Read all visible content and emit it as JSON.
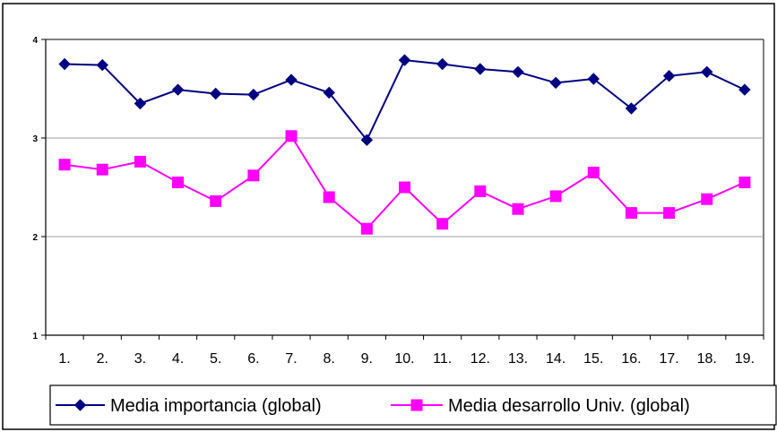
{
  "chart_data": {
    "type": "line",
    "title": "",
    "xlabel": "",
    "ylabel": "",
    "categories": [
      "1.",
      "2.",
      "3.",
      "4.",
      "5.",
      "6.",
      "7.",
      "8.",
      "9.",
      "10.",
      "11.",
      "12.",
      "13.",
      "14.",
      "15.",
      "16.",
      "17.",
      "18.",
      "19."
    ],
    "ylim": [
      1,
      4
    ],
    "yticks": [
      "1",
      "2",
      "3",
      "4"
    ],
    "grid": true,
    "legend_position": "bottom",
    "series": [
      {
        "name": "Media importancia (global)",
        "color": "#000080",
        "marker": "diamond",
        "values": [
          3.75,
          3.74,
          3.35,
          3.49,
          3.45,
          3.44,
          3.59,
          3.46,
          2.98,
          3.79,
          3.75,
          3.7,
          3.67,
          3.56,
          3.6,
          3.3,
          3.63,
          3.67,
          3.49
        ]
      },
      {
        "name": "Media desarrollo Univ. (global)",
        "color": "#ff00ff",
        "marker": "square",
        "values": [
          2.73,
          2.68,
          2.76,
          2.55,
          2.36,
          2.62,
          3.02,
          2.4,
          2.08,
          2.5,
          2.13,
          2.46,
          2.28,
          2.41,
          2.65,
          2.24,
          2.24,
          2.38,
          2.55
        ]
      }
    ]
  }
}
